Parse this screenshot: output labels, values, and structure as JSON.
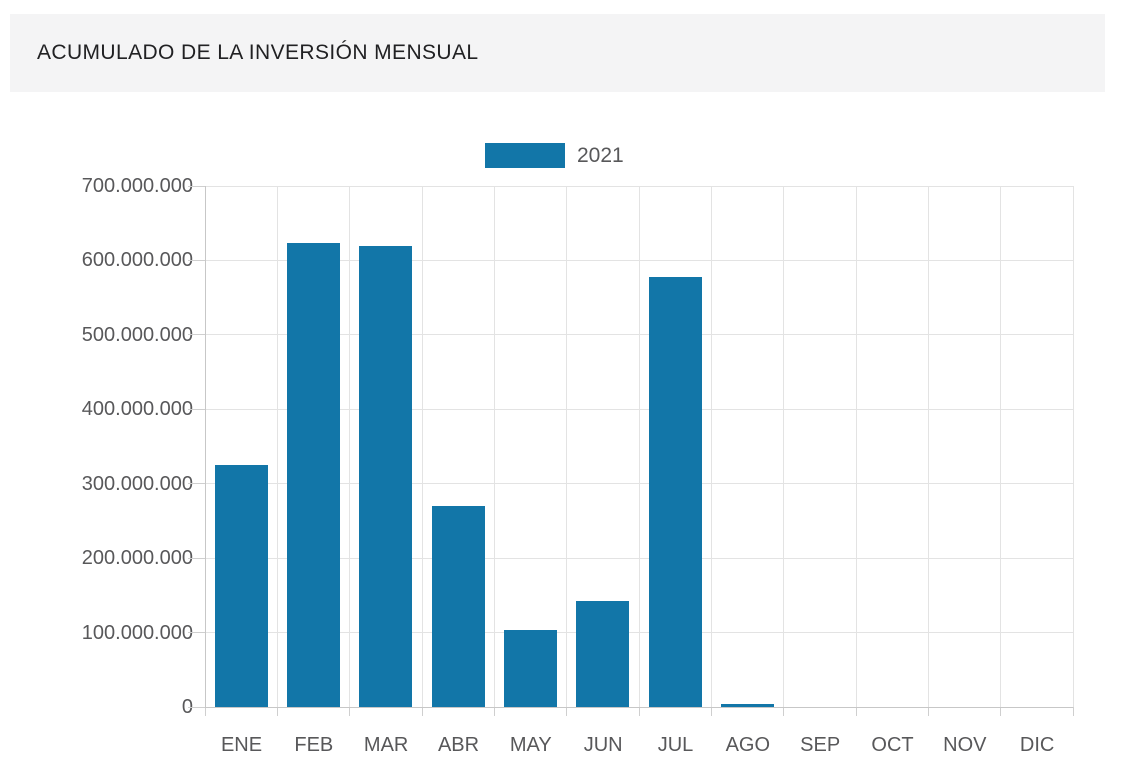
{
  "header": {
    "title": "ACUMULADO DE LA INVERSIÓN MENSUAL"
  },
  "legend": {
    "label": "2021",
    "swatch_color": "#1276a8"
  },
  "colors": {
    "bar": "#1276a8",
    "axis_text": "#58585a",
    "title_text": "#212123",
    "header_background": "#f4f4f5"
  },
  "chart_data": {
    "type": "bar",
    "title": "ACUMULADO DE LA INVERSIÓN MENSUAL",
    "xlabel": "",
    "ylabel": "",
    "categories": [
      "ENE",
      "FEB",
      "MAR",
      "ABR",
      "MAY",
      "JUN",
      "JUL",
      "AGO",
      "SEP",
      "OCT",
      "NOV",
      "DIC"
    ],
    "series": [
      {
        "name": "2021",
        "color": "#1276a8",
        "values": [
          325000000,
          623000000,
          619000000,
          270000000,
          103000000,
          142000000,
          578000000,
          4000000,
          0,
          0,
          0,
          0
        ]
      }
    ],
    "ylim": [
      0,
      700000000
    ],
    "ytick_interval": 100000000,
    "ytick_labels": [
      "0",
      "100.000.000",
      "200.000.000",
      "300.000.000",
      "400.000.000",
      "500.000.000",
      "600.000.000",
      "700.000.000"
    ],
    "grid": true,
    "legend_position": "top-center"
  }
}
